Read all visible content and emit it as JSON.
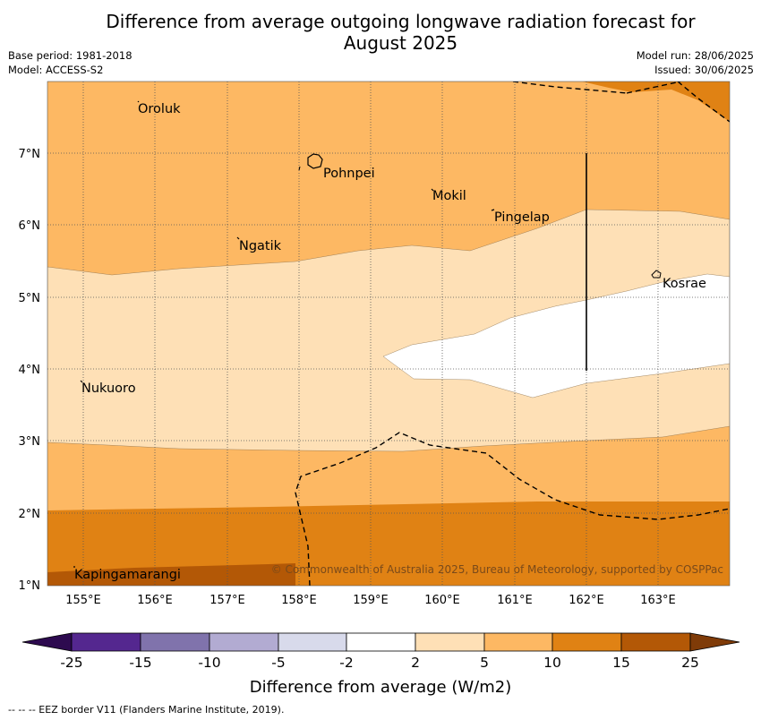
{
  "title": {
    "line1": "Difference from average outgoing longwave radiation forecast for",
    "line2": "August 2025"
  },
  "meta": {
    "base_period": "Base period: 1981-2018",
    "model": "Model: ACCESS-S2",
    "model_run": "Model run: 28/06/2025",
    "issued": "Issued: 30/06/2025"
  },
  "map": {
    "lon_labels": [
      "155°E",
      "156°E",
      "157°E",
      "158°E",
      "159°E",
      "160°E",
      "161°E",
      "162°E",
      "163°E"
    ],
    "lat_labels": [
      "7°N",
      "6°N",
      "5°N",
      "4°N",
      "3°N",
      "2°N",
      "1°N"
    ],
    "places": [
      "Oroluk",
      "Pohnpei",
      "Mokil",
      "Pingelap",
      "Ngatik",
      "Kosrae",
      "Nukuoro",
      "Kapingamarangi"
    ],
    "copyright": "© Commonwealth of Australia 2025, Bureau of Meteorology, supported by COSPPac"
  },
  "colorbar": {
    "ticks": [
      "-25",
      "-15",
      "-10",
      "-5",
      "-2",
      "2",
      "5",
      "10",
      "15",
      "25"
    ],
    "label": "Difference from average (W/m2)",
    "colors": {
      "below": "#2d0a4f",
      "n25_n15": "#54278f",
      "n15_n10": "#8073ac",
      "n10_n5": "#b2abd2",
      "n5_n2": "#d8daeb",
      "n2_2": "#ffffff",
      "p2_5": "#fee0b6",
      "p5_10": "#fdb863",
      "p10_15": "#e08214",
      "p15_25": "#b35806",
      "above": "#7f3b08"
    }
  },
  "footer": "--  --  -- EEZ border V11 (Flanders Marine Institute, 2019)."
}
